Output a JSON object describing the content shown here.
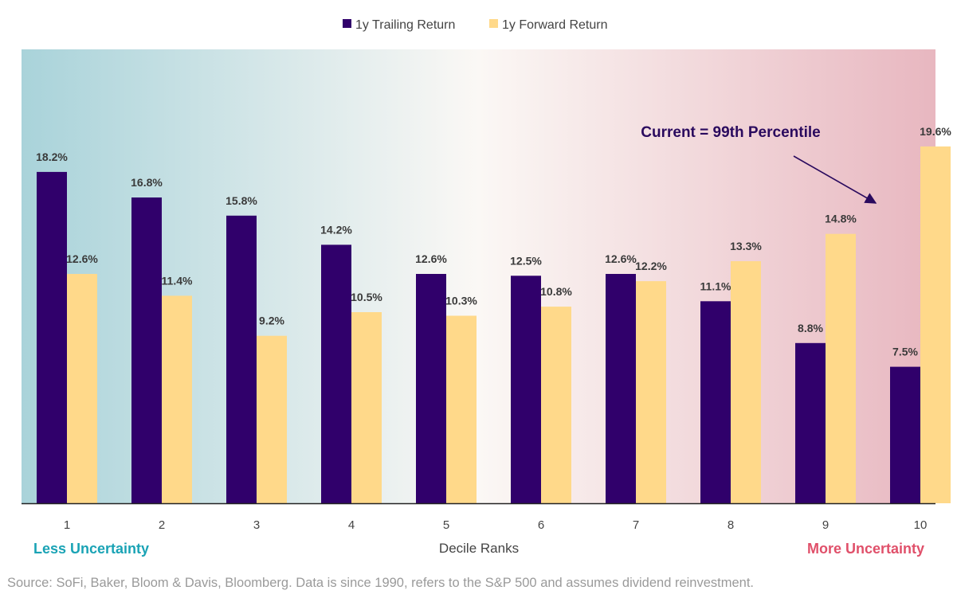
{
  "chart_data": {
    "type": "bar",
    "categories": [
      "1",
      "2",
      "3",
      "4",
      "5",
      "6",
      "7",
      "8",
      "9",
      "10"
    ],
    "series": [
      {
        "name": "1y Trailing Return",
        "values": [
          18.2,
          16.8,
          15.8,
          14.2,
          12.6,
          12.5,
          12.6,
          11.1,
          8.8,
          7.5
        ],
        "labels": [
          "18.2%",
          "16.8%",
          "15.8%",
          "14.2%",
          "12.6%",
          "12.5%",
          "12.6%",
          "11.1%",
          "8.8%",
          "7.5%"
        ]
      },
      {
        "name": "1y Forward Return",
        "values": [
          12.6,
          11.4,
          9.2,
          10.5,
          10.3,
          10.8,
          12.2,
          13.3,
          14.8,
          19.6
        ],
        "labels": [
          "12.6%",
          "11.4%",
          "9.2%",
          "10.5%",
          "10.3%",
          "10.8%",
          "12.2%",
          "13.3%",
          "14.8%",
          "19.6%"
        ]
      }
    ],
    "xlabel": "Decile Ranks",
    "ylabel": "",
    "ylim": [
      0,
      25
    ],
    "grid": false,
    "legend_position": "top-center",
    "left_note": "Less Uncertainty",
    "right_note": "More Uncertainty",
    "annotation": "Current = 99th Percentile",
    "source": "Source: SoFi, Baker, Bloom & Davis, Bloomberg. Data is since 1990, refers to the S&P 500 and assumes dividend reinvestment."
  },
  "colors": {
    "trailing": "#30006b",
    "forward": "#ffd98a",
    "less_uncertainty": "#1aa3b5",
    "more_uncertainty": "#e0506a",
    "annotation": "#2a0a5e",
    "bg_left": "#a9d3da",
    "bg_mid": "#fbf8f5",
    "bg_right": "#e8b7c0"
  }
}
